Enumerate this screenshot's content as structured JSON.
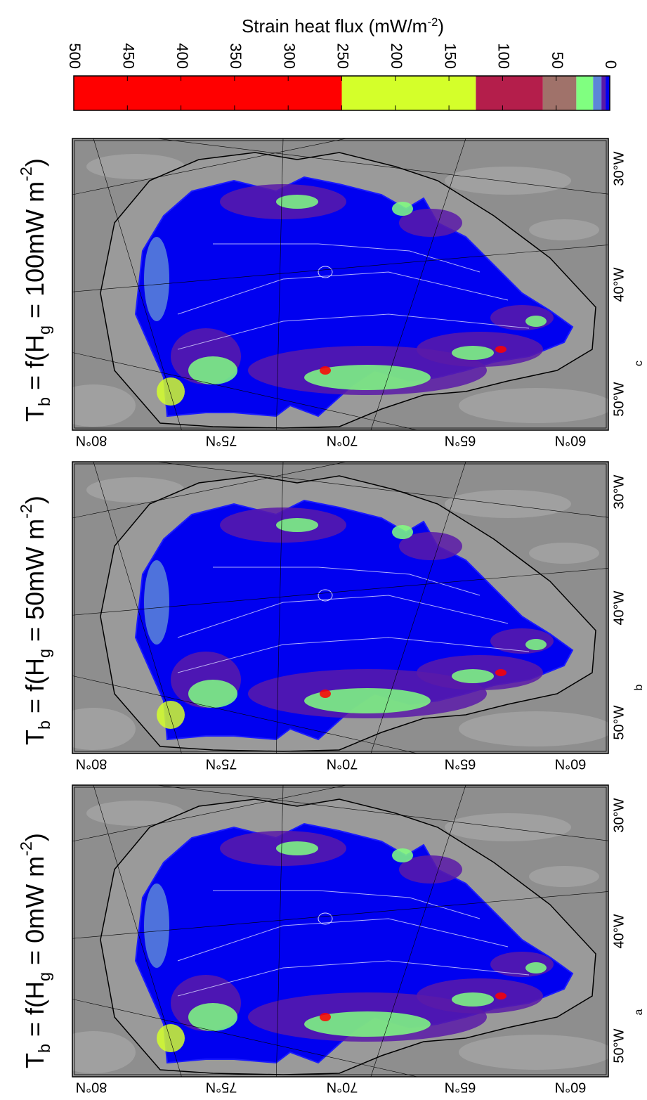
{
  "chart_data": {
    "type": "map",
    "colorbar": {
      "title": [
        {
          "text": "Strain heat flux (mW/m",
          "style": "normal"
        },
        {
          "text": "-2",
          "style": "sup"
        },
        {
          "text": ")",
          "style": "normal"
        }
      ],
      "xlim": [
        500,
        0
      ],
      "ticks": [
        500,
        450,
        400,
        350,
        300,
        250,
        200,
        150,
        100,
        50,
        0
      ],
      "bounds": [
        0,
        3.9,
        7.8,
        15.6,
        31.25,
        62.5,
        125,
        250,
        500
      ],
      "colors": [
        "#0000f0",
        "#5a1aa8",
        "#5c86d8",
        "#80ff80",
        "#a0726a",
        "#b41e4b",
        "#d4ff2a",
        "#ff0000"
      ]
    },
    "panels": [
      {
        "letter": "c",
        "title": [
          {
            "text": "T",
            "style": "normal"
          },
          {
            "text": "b",
            "style": "sub"
          },
          {
            "text": " = f(H",
            "style": "normal"
          },
          {
            "text": "g",
            "style": "sub"
          },
          {
            "text": " = 100mW m",
            "style": "normal"
          },
          {
            "text": "-2",
            "style": "sup"
          },
          {
            "text": ")",
            "style": "normal"
          }
        ]
      },
      {
        "letter": "b",
        "title": [
          {
            "text": "T",
            "style": "normal"
          },
          {
            "text": "b",
            "style": "sub"
          },
          {
            "text": " = f(H",
            "style": "normal"
          },
          {
            "text": "g",
            "style": "sub"
          },
          {
            "text": " = 50mW m",
            "style": "normal"
          },
          {
            "text": "-2",
            "style": "sup"
          },
          {
            "text": ")",
            "style": "normal"
          }
        ]
      },
      {
        "letter": "a",
        "title": [
          {
            "text": "T",
            "style": "normal"
          },
          {
            "text": "b",
            "style": "sub"
          },
          {
            "text": " = f(H",
            "style": "normal"
          },
          {
            "text": "g",
            "style": "sub"
          },
          {
            "text": " = 0mW m",
            "style": "normal"
          },
          {
            "text": "-2",
            "style": "sup"
          },
          {
            "text": ")",
            "style": "normal"
          }
        ]
      }
    ],
    "lat_labels": [
      "80°N",
      "75°N",
      "70°N",
      "65°N",
      "60°N"
    ],
    "lon_labels": [
      "50°W",
      "40°W",
      "30°W"
    ]
  }
}
